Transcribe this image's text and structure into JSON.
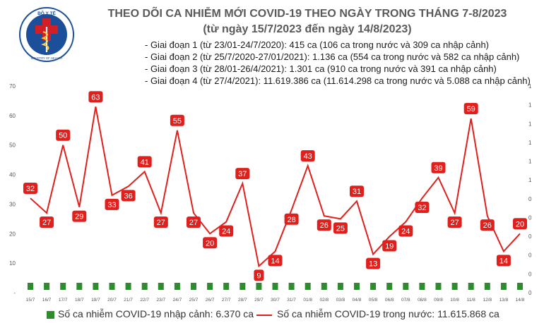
{
  "header": {
    "logo_text": "BỘ Y TẾ",
    "logo_subtext": "MINISTRY OF HEALTH",
    "title": "THEO DÕI CA NHIỄM MỚI COVID-19 THEO NGÀY TRONG THÁNG 7-8/2023",
    "subtitle": "(từ ngày 15/7/2023 đến ngày 14/8/2023)"
  },
  "phases": [
    "- Giai đoạn 1 (từ 23/01-24/7/2020): 415 ca (106 ca trong nước và 309 ca nhập cảnh)",
    "- Giai đoạn 2 (từ 25/7/2020-27/01/2021): 1.136 ca (554 ca trong nước và 582 ca nhập cảnh)",
    "- Giai đoạn 3 (từ 28/01-26/4/2021): 1.301 ca (910 ca trong nước và 391 ca nhập cảnh)",
    "- Giai đoạn 4 (từ 27/4/2021): 11.619.386 ca (11.614.298 ca trong nước và 5.088 ca nhập cảnh)"
  ],
  "legend": {
    "imported": "Số ca nhiễm COVID-19 nhập cảnh: 6.370 ca",
    "domestic": "Số ca nhiễm COVID-19 trong nước: 11.615.868 ca"
  },
  "colors": {
    "domestic": "#e0201d",
    "imported": "#2e8b2e",
    "label_bg": "#e0201d",
    "label_text": "#ffffff"
  },
  "chart_data": {
    "type": "line",
    "title": "THEO DÕI CA NHIỄM MỚI COVID-19 THEO NGÀY TRONG THÁNG 7-8/2023",
    "categories": [
      "15/7",
      "16/7",
      "17/7",
      "18/7",
      "19/7",
      "20/7",
      "21/7",
      "22/7",
      "23/7",
      "24/7",
      "25/7",
      "26/7",
      "27/7",
      "28/7",
      "29/7",
      "30/7",
      "31/7",
      "01/8",
      "02/8",
      "03/8",
      "04/8",
      "05/8",
      "06/8",
      "07/8",
      "08/8",
      "09/8",
      "10/8",
      "11/8",
      "12/8",
      "13/8",
      "14/8"
    ],
    "series": [
      {
        "name": "Số ca nhiễm COVID-19 trong nước",
        "type": "line",
        "axis": "left",
        "values": [
          32,
          27,
          50,
          29,
          63,
          33,
          36,
          41,
          27,
          55,
          27,
          20,
          24,
          37,
          9,
          14,
          28,
          43,
          26,
          25,
          31,
          13,
          19,
          24,
          32,
          39,
          27,
          59,
          26,
          14,
          20
        ]
      },
      {
        "name": "Số ca nhiễm COVID-19 nhập cảnh",
        "type": "bar",
        "axis": "right",
        "values": [
          0,
          0,
          0,
          0,
          0,
          0,
          0,
          0,
          0,
          0,
          0,
          0,
          0,
          0,
          0,
          0,
          0,
          0,
          0,
          0,
          0,
          0,
          0,
          0,
          0,
          0,
          0,
          0,
          0,
          0,
          0
        ]
      }
    ],
    "left_axis": {
      "ylim": [
        0,
        70
      ],
      "ticks": [
        "-",
        "10",
        "20",
        "30",
        "40",
        "50",
        "60",
        "70"
      ]
    },
    "right_axis": {
      "ticks": [
        "0",
        "0",
        "0",
        "0",
        "0",
        "0",
        "1",
        "1",
        "1",
        "1",
        "1",
        "1"
      ]
    },
    "grid": false
  }
}
